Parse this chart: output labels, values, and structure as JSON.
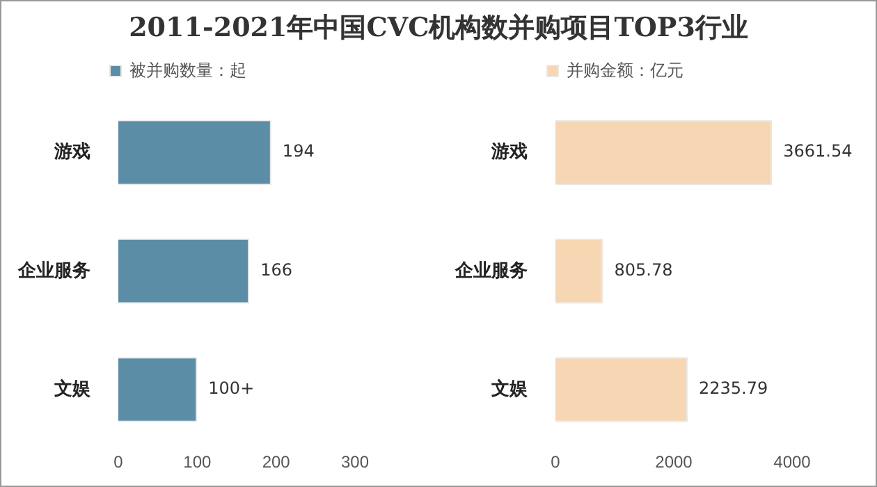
{
  "chart_data": [
    {
      "type": "bar",
      "title": "2011-2021年中国CVC机构数并购项目TOP3行业",
      "orientation": "horizontal",
      "categories": [
        "游戏",
        "企业服务",
        "文娱"
      ],
      "series": [
        {
          "name": "被并购数量：起",
          "color": "#5b8ea6",
          "values": [
            194,
            166,
            100
          ],
          "value_labels": [
            "194",
            "166",
            "100+"
          ]
        }
      ],
      "xlim": [
        0,
        300
      ],
      "xticks": [
        0,
        100,
        200,
        300
      ],
      "grid": false,
      "legend": "top"
    },
    {
      "type": "bar",
      "orientation": "horizontal",
      "categories": [
        "游戏",
        "企业服务",
        "文娱"
      ],
      "series": [
        {
          "name": "并购金额：亿元",
          "color": "#f7d6b4",
          "values": [
            3661.54,
            805.78,
            2235.79
          ]
        }
      ],
      "xlim": [
        0,
        4000
      ],
      "xticks": [
        0,
        2000,
        4000
      ],
      "grid": false,
      "legend": "top",
      "data_labels": true
    }
  ]
}
